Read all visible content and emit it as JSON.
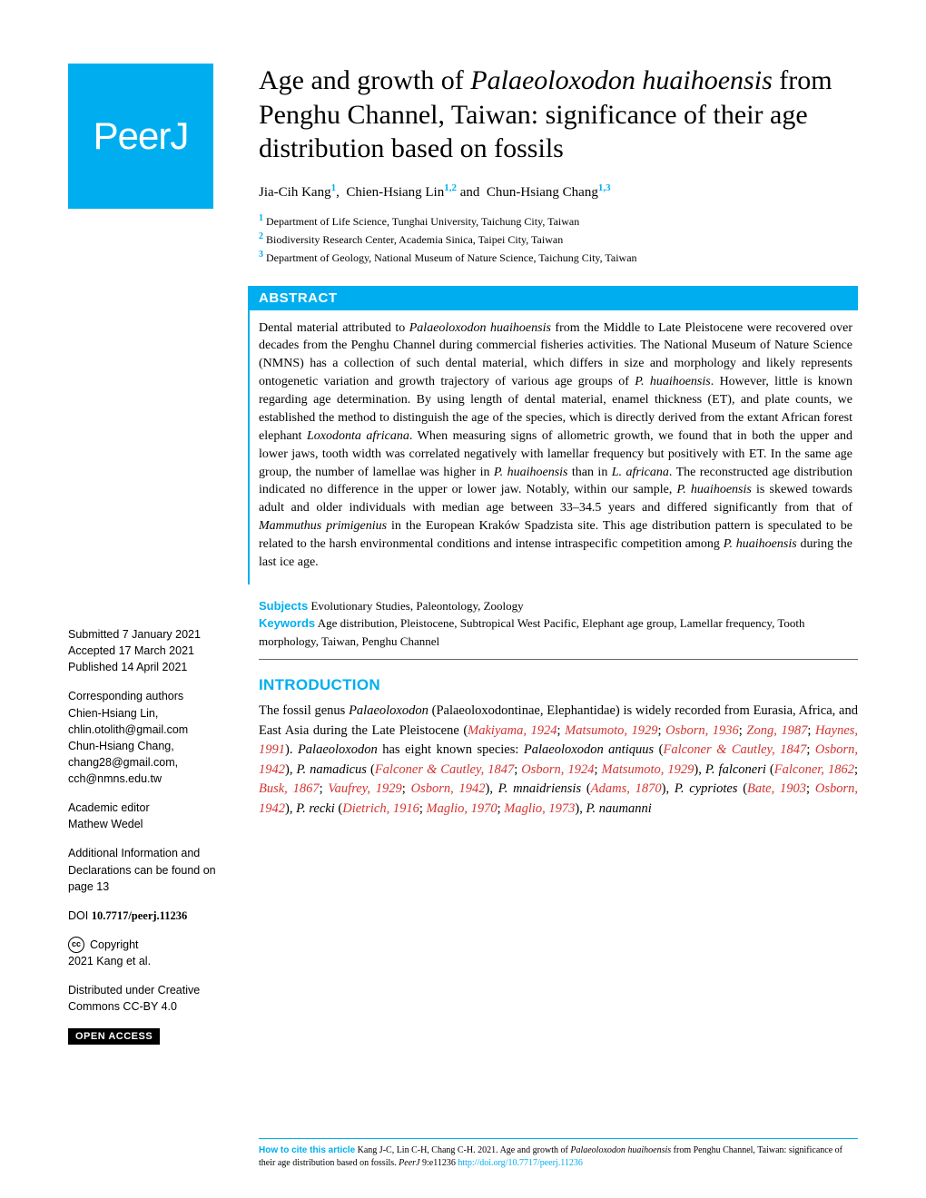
{
  "logo": "PeerJ",
  "title_pre": "Age and growth of ",
  "title_italic": "Palaeoloxodon huaihoensis",
  "title_post": " from Penghu Channel, Taiwan: significance of their age distribution based on fossils",
  "authors": {
    "a1": "Jia-Cih Kang",
    "s1": "1",
    "a2": "Chien-Hsiang Lin",
    "s2": "1,2",
    "a3": "Chun-Hsiang Chang",
    "s3": "1,3"
  },
  "affiliations": {
    "n1": "1",
    "t1": "Department of Life Science, Tunghai University, Taichung City, Taiwan",
    "n2": "2",
    "t2": "Biodiversity Research Center, Academia Sinica, Taipei City, Taiwan",
    "n3": "3",
    "t3": "Department of Geology, National Museum of Nature Science, Taichung City, Taiwan"
  },
  "abstract_label": "ABSTRACT",
  "abstract": {
    "p1a": "Dental material attributed to ",
    "p1i1": "Palaeoloxodon huaihoensis",
    "p1b": " from the Middle to Late Pleistocene were recovered over decades from the Penghu Channel during commercial fisheries activities. The National Museum of Nature Science (NMNS) has a collection of such dental material, which differs in size and morphology and likely represents ontogenetic variation and growth trajectory of various age groups of ",
    "p1i2": "P. huaihoensis",
    "p1c": ". However, little is known regarding age determination. By using length of dental material, enamel thickness (ET), and plate counts, we established the method to distinguish the age of the species, which is directly derived from the extant African forest elephant ",
    "p1i3": "Loxodonta africana",
    "p1d": ". When measuring signs of allometric growth, we found that in both the upper and lower jaws, tooth width was correlated negatively with lamellar frequency but positively with ET. In the same age group, the number of lamellae was higher in ",
    "p1i4": "P. huaihoensis",
    "p1e": " than in ",
    "p1i5": "L. africana",
    "p1f": ". The reconstructed age distribution indicated no difference in the upper or lower jaw. Notably, within our sample, ",
    "p1i6": "P. huaihoensis",
    "p1g": " is skewed towards adult and older individuals with median age between 33–34.5 years and differed significantly from that of ",
    "p1i7": "Mammuthus primigenius",
    "p1h": " in the European Kraków Spadzista site. This age distribution pattern is speculated to be related to the harsh environmental conditions and intense intraspecific competition among ",
    "p1i8": "P. huaihoensis",
    "p1j": " during the last ice age."
  },
  "subjects_label": "Subjects",
  "subjects": "Evolutionary Studies, Paleontology, Zoology",
  "keywords_label": "Keywords",
  "keywords": "Age distribution, Pleistocene, Subtropical West Pacific, Elephant age group, Lamellar frequency, Tooth morphology, Taiwan, Penghu Channel",
  "intro_label": "INTRODUCTION",
  "intro": {
    "a": "The fossil genus ",
    "i1": "Palaeoloxodon",
    "b": " (Palaeoloxodontinae, Elephantidae) is widely recorded from Eurasia, Africa, and East Asia during the Late Pleistocene (",
    "r1": "Makiyama, 1924",
    "c": "; ",
    "r2": "Matsumoto, 1929",
    "d": "; ",
    "r3": "Osborn, 1936",
    "e": "; ",
    "r4": "Zong, 1987",
    "f": "; ",
    "r5": "Haynes, 1991",
    "g": "). ",
    "i2": "Palaeoloxodon",
    "h": " has eight known species: ",
    "i3": "Palaeoloxodon antiquus",
    "j": " (",
    "r6": "Falconer & Cautley, 1847",
    "k": "; ",
    "r7": "Osborn, 1942",
    "l": "), ",
    "i4": "P. namadicus",
    "m": " (",
    "r8": "Falconer & Cautley, 1847",
    "n": "; ",
    "r9": "Osborn, 1924",
    "o": "; ",
    "r10": "Matsumoto, 1929",
    "p": "), ",
    "i5": "P. falconeri",
    "q": " (",
    "r11": "Falconer, 1862",
    "r": "; ",
    "r12": "Busk, 1867",
    "s": "; ",
    "r13": "Vaufrey, 1929",
    "t": "; ",
    "r14": "Osborn, 1942",
    "u": "), ",
    "i6": "P. mnaidriensis",
    "v": " (",
    "r15": "Adams, 1870",
    "w": "), ",
    "i7": "P. cypriotes",
    "x": " (",
    "r16": "Bate, 1903",
    "y": "; ",
    "r17": "Osborn, 1942",
    "z": "), ",
    "i8": "P. recki",
    "aa": " (",
    "r18": "Dietrich, 1916",
    "ab": "; ",
    "r19": "Maglio, 1970",
    "ac": "; ",
    "r20": "Maglio, 1973",
    "ad": "), ",
    "i9": "P. naumanni"
  },
  "sidebar": {
    "submitted_label": "Submitted",
    "submitted": " 7 January 2021",
    "accepted_label": "Accepted",
    "accepted": " 17 March 2021",
    "published_label": "Published",
    "published": " 14 April 2021",
    "corresponding_label": "Corresponding authors",
    "corr1": "Chien-Hsiang Lin, chlin.otolith@gmail.com",
    "corr2": "Chun-Hsiang Chang, chang28@gmail.com, cch@nmns.edu.tw",
    "editor_label": "Academic editor",
    "editor": "Mathew Wedel",
    "additional": "Additional Information and Declarations can be found on page 13",
    "doi_label": "DOI ",
    "doi": "10.7717/peerj.11236",
    "copyright_label": "Copyright",
    "copyright": "2021 Kang et al.",
    "distributed": "Distributed under Creative Commons CC-BY 4.0",
    "open_access": "OPEN ACCESS"
  },
  "citation": {
    "label": "How to cite this article",
    "a": " Kang J-C, Lin C-H, Chang C-H. 2021. Age and growth of ",
    "i1": "Palaeoloxodon huaihoensis",
    "b": " from Penghu Channel, Taiwan: significance of their age distribution based on fossils. ",
    "i2": "PeerJ",
    "c": " 9:e11236 ",
    "link": "http://doi.org/10.7717/peerj.11236"
  }
}
